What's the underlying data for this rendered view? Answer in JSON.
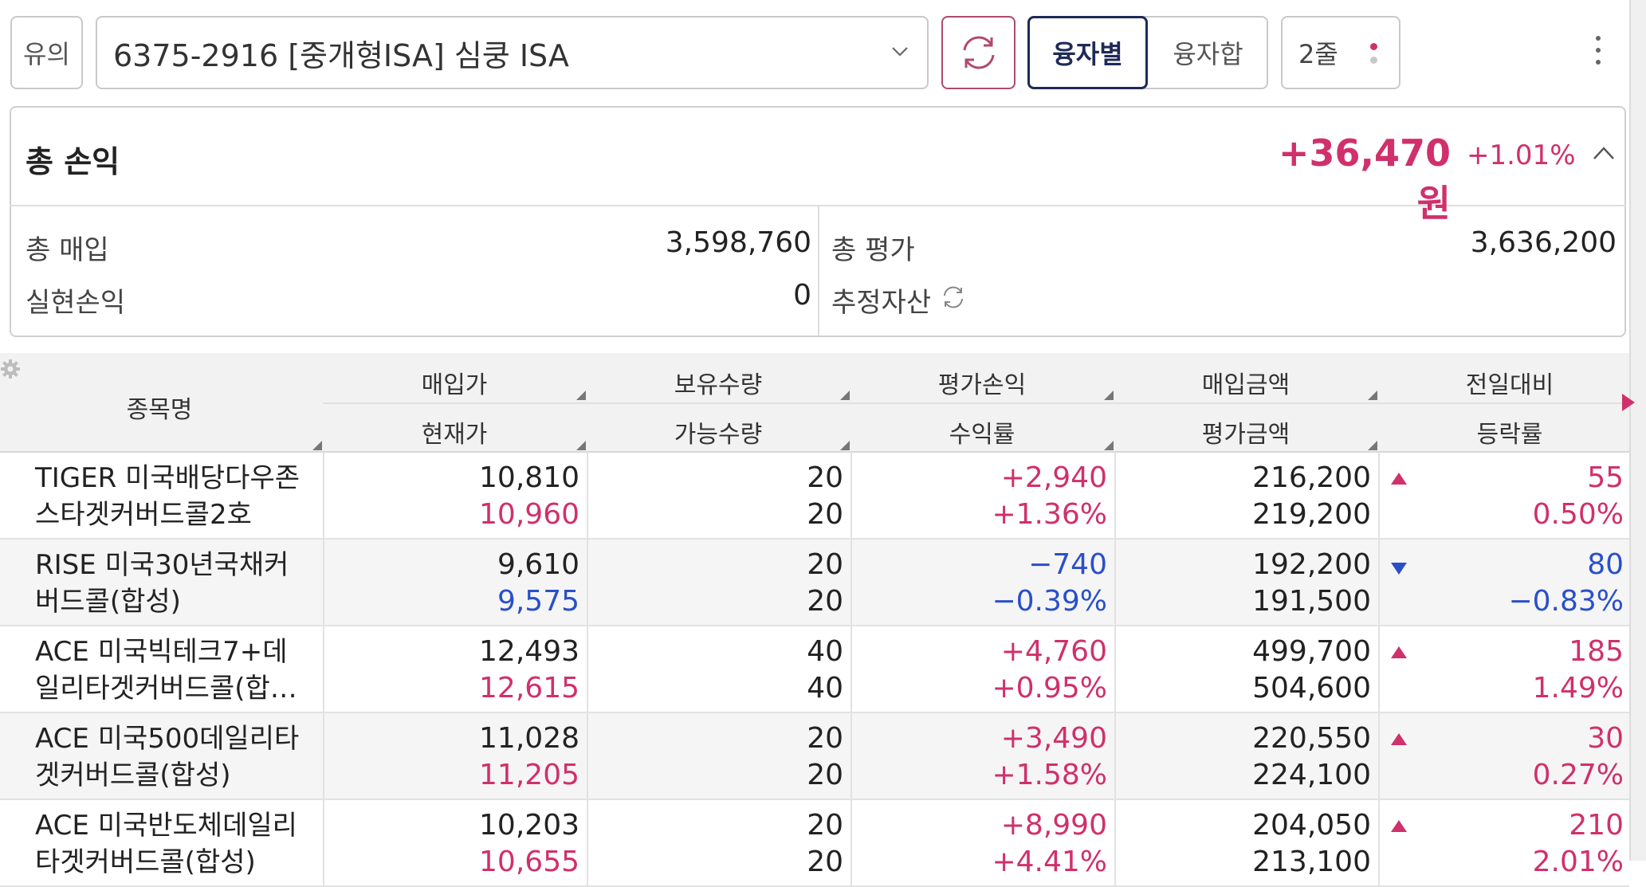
{
  "toolbar": {
    "caution_label": "유의",
    "account_text": "6375-2916 [중개형ISA] 심쿵 ISA",
    "segment_on": "융자별",
    "segment_off": "융자합",
    "lines_label": "2줄"
  },
  "summary": {
    "total_label": "총 손익",
    "total_value": "+36,470원",
    "total_pct": "+1.01%",
    "buy_label": "총 매입",
    "buy_value": "3,598,760",
    "eval_label": "총 평가",
    "eval_value": "3,636,200",
    "realized_label": "실현손익",
    "realized_value": "0",
    "assets_label": "추정자산"
  },
  "table": {
    "headers": {
      "name": "종목명",
      "buy_price": "매입가",
      "cur_price": "현재가",
      "hold_qty": "보유수량",
      "avail_qty": "가능수량",
      "eval_pl": "평가손익",
      "return_rate": "수익률",
      "buy_amount": "매입금액",
      "eval_amount": "평가금액",
      "prev_diff": "전일대비",
      "change_rate": "등락률"
    },
    "rows": [
      {
        "name1": "TIGER 미국배당다우존",
        "name2": "스타겟커버드콜2호",
        "buy": "10,810",
        "cur": "10,960",
        "qty": "20",
        "avail": "20",
        "pl": "+2,940",
        "rate": "+1.36%",
        "buy_amt": "216,200",
        "eval_amt": "219,200",
        "diff": "55",
        "chg": "0.50%",
        "dir": "up"
      },
      {
        "name1": "RISE 미국30년국채커",
        "name2": "버드콜(합성)",
        "buy": "9,610",
        "cur": "9,575",
        "qty": "20",
        "avail": "20",
        "pl": "−740",
        "rate": "−0.39%",
        "buy_amt": "192,200",
        "eval_amt": "191,500",
        "diff": "80",
        "chg": "−0.83%",
        "dir": "down"
      },
      {
        "name1": "ACE 미국빅테크7+데",
        "name2": "일리타겟커버드콜(합…",
        "buy": "12,493",
        "cur": "12,615",
        "qty": "40",
        "avail": "40",
        "pl": "+4,760",
        "rate": "+0.95%",
        "buy_amt": "499,700",
        "eval_amt": "504,600",
        "diff": "185",
        "chg": "1.49%",
        "dir": "up"
      },
      {
        "name1": "ACE 미국500데일리타",
        "name2": "겟커버드콜(합성)",
        "buy": "11,028",
        "cur": "11,205",
        "qty": "20",
        "avail": "20",
        "pl": "+3,490",
        "rate": "+1.58%",
        "buy_amt": "220,550",
        "eval_amt": "224,100",
        "diff": "30",
        "chg": "0.27%",
        "dir": "up"
      },
      {
        "name1": "ACE 미국반도체데일리",
        "name2": "타겟커버드콜(합성)",
        "buy": "10,203",
        "cur": "10,655",
        "qty": "20",
        "avail": "20",
        "pl": "+8,990",
        "rate": "+4.41%",
        "buy_amt": "204,050",
        "eval_amt": "213,100",
        "diff": "210",
        "chg": "2.01%",
        "dir": "up"
      }
    ]
  },
  "colors": {
    "up": "#d0306b",
    "down": "#2a4fc9",
    "accent_navy": "#1f2a57"
  }
}
